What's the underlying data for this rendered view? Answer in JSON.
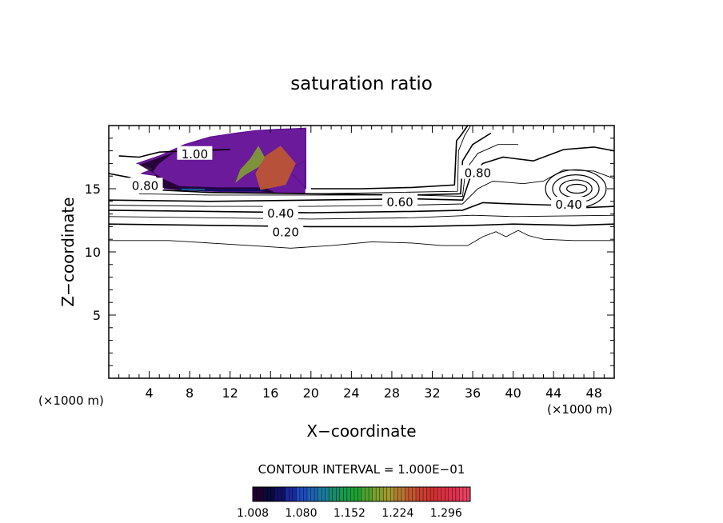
{
  "chart_data": {
    "type": "contour",
    "title": "saturation ratio",
    "xlabel": "X−coordinate",
    "ylabel": "Z−coordinate",
    "x_unit": "(×1000 m)",
    "y_unit": "(×1000 m)",
    "xlim": [
      0,
      50
    ],
    "ylim": [
      0,
      20
    ],
    "x_ticks": [
      4,
      8,
      12,
      16,
      20,
      24,
      28,
      32,
      36,
      40,
      44,
      48
    ],
    "x_tick_labels": [
      "4",
      "8",
      "12",
      "16",
      "20",
      "24",
      "28",
      "32",
      "36",
      "40",
      "44",
      "48"
    ],
    "y_ticks": [
      5,
      10,
      15
    ],
    "y_tick_labels": [
      "5",
      "10",
      "15"
    ],
    "contour_interval_text": "CONTOUR INTERVAL = 1.000E−01",
    "contour_labels": [
      {
        "text": "0.20",
        "x": 17.5,
        "z": 11.6
      },
      {
        "text": "0.40",
        "x": 17.0,
        "z": 13.1
      },
      {
        "text": "0.60",
        "x": 28.8,
        "z": 14.0
      },
      {
        "text": "0.40",
        "x": 45.5,
        "z": 13.8
      },
      {
        "text": "0.80",
        "x": 36.5,
        "z": 16.3
      },
      {
        "text": "0.80",
        "x": 3.6,
        "z": 15.3
      },
      {
        "text": "1.00",
        "x": 8.5,
        "z": 17.8
      }
    ],
    "contours": [
      {
        "level": 0.1,
        "points": [
          [
            0,
            10.9
          ],
          [
            6,
            10.9
          ],
          [
            10,
            10.7
          ],
          [
            14,
            10.5
          ],
          [
            18,
            10.3
          ],
          [
            22,
            10.5
          ],
          [
            26,
            10.8
          ],
          [
            30,
            10.7
          ],
          [
            33,
            10.5
          ],
          [
            35.5,
            10.5
          ],
          [
            37,
            11.2
          ],
          [
            38.3,
            11.6
          ],
          [
            39.3,
            11.2
          ],
          [
            40.5,
            11.7
          ],
          [
            41.5,
            11.3
          ],
          [
            43,
            11.0
          ],
          [
            46,
            10.9
          ],
          [
            50,
            10.9
          ]
        ]
      },
      {
        "level": 0.2,
        "points": [
          [
            0,
            12.2
          ],
          [
            10,
            12.1
          ],
          [
            20,
            12.0
          ],
          [
            30,
            12.0
          ],
          [
            36,
            12.1
          ],
          [
            40,
            12.2
          ],
          [
            46,
            12.1
          ],
          [
            50,
            12.2
          ]
        ]
      },
      {
        "level": 0.3,
        "points": [
          [
            0,
            12.8
          ],
          [
            10,
            12.7
          ],
          [
            20,
            12.6
          ],
          [
            30,
            12.7
          ],
          [
            36,
            12.9
          ],
          [
            40,
            12.8
          ],
          [
            50,
            12.9
          ]
        ]
      },
      {
        "level": 0.4,
        "points": [
          [
            0,
            13.3
          ],
          [
            10,
            13.2
          ],
          [
            20,
            13.1
          ],
          [
            30,
            13.2
          ],
          [
            35,
            13.3
          ],
          [
            37,
            13.9
          ],
          [
            40,
            13.8
          ],
          [
            44,
            13.7
          ],
          [
            47,
            13.5
          ],
          [
            50,
            13.6
          ]
        ]
      },
      {
        "level": 0.5,
        "points": [
          [
            0,
            13.7
          ],
          [
            10,
            13.6
          ],
          [
            20,
            13.6
          ],
          [
            30,
            13.7
          ],
          [
            35,
            13.8
          ],
          [
            36.5,
            15.0
          ],
          [
            38,
            15.6
          ],
          [
            41,
            15.4
          ],
          [
            43,
            15.6
          ],
          [
            45,
            16.5
          ],
          [
            48,
            16.4
          ],
          [
            50,
            15.8
          ]
        ]
      },
      {
        "level": 0.6,
        "points": [
          [
            0,
            14.1
          ],
          [
            10,
            14.0
          ],
          [
            20,
            14.1
          ],
          [
            30,
            14.2
          ],
          [
            35,
            14.1
          ],
          [
            35.8,
            16.0
          ],
          [
            37,
            17.0
          ],
          [
            39,
            17.5
          ],
          [
            42,
            17.2
          ],
          [
            45,
            18.1
          ],
          [
            48,
            18.3
          ],
          [
            50,
            18.0
          ]
        ]
      },
      {
        "level": 0.7,
        "points": [
          [
            3,
            14.6
          ],
          [
            10,
            14.5
          ],
          [
            20,
            14.5
          ],
          [
            30,
            14.5
          ],
          [
            35,
            14.4
          ],
          [
            35.3,
            16.5
          ],
          [
            36.5,
            17.8
          ],
          [
            38.5,
            18.5
          ],
          [
            40.5,
            18.5
          ]
        ]
      },
      {
        "level": 0.8,
        "points": [
          [
            0,
            16.2
          ],
          [
            2,
            15.9
          ],
          [
            3.5,
            15.5
          ],
          [
            5,
            14.9
          ],
          [
            10,
            14.7
          ],
          [
            20,
            14.6
          ],
          [
            30,
            14.5
          ],
          [
            34.8,
            14.6
          ],
          [
            35.0,
            17.2
          ],
          [
            36.0,
            18.5
          ],
          [
            37.8,
            19.4
          ]
        ]
      },
      {
        "level": 0.9,
        "points": [
          [
            20,
            14.6
          ],
          [
            28,
            14.7
          ],
          [
            34.5,
            14.8
          ],
          [
            34.6,
            18.0
          ],
          [
            35.2,
            19.2
          ],
          [
            35.8,
            20
          ]
        ]
      },
      {
        "level": 1.0,
        "points": [
          [
            1,
            17.6
          ],
          [
            3,
            17.5
          ],
          [
            5,
            17.9
          ],
          [
            8,
            18.0
          ],
          [
            12,
            18.1
          ]
        ]
      },
      {
        "level": 1.0,
        "points": [
          [
            20,
            15.0
          ],
          [
            25,
            15.0
          ],
          [
            30,
            15.1
          ],
          [
            34.2,
            15.3
          ],
          [
            34.4,
            18.8
          ],
          [
            34.9,
            19.3
          ],
          [
            35.5,
            20
          ]
        ]
      }
    ],
    "closed_contours": [
      {
        "level": 0.5,
        "cx": 46.2,
        "cz": 15.0,
        "rx": 3.0,
        "rz": 1.5
      },
      {
        "level": 0.6,
        "cx": 46.2,
        "cz": 15.0,
        "rx": 2.3,
        "rz": 1.1
      },
      {
        "level": 0.7,
        "cx": 46.2,
        "cz": 15.0,
        "rx": 1.6,
        "rz": 0.7
      },
      {
        "level": 0.8,
        "cx": 46.3,
        "cz": 15.0,
        "rx": 1.0,
        "rz": 0.35
      }
    ],
    "filled_region": {
      "min_level": 1.0,
      "outline": [
        [
          2.8,
          17.0
        ],
        [
          5.0,
          17.6
        ],
        [
          7.5,
          18.5
        ],
        [
          10.0,
          19.1
        ],
        [
          12.5,
          19.4
        ],
        [
          14.5,
          19.6
        ],
        [
          16.5,
          19.7
        ],
        [
          19.5,
          19.8
        ],
        [
          19.5,
          15.0
        ],
        [
          18.5,
          15.9
        ],
        [
          17.5,
          16.5
        ],
        [
          18.5,
          16.8
        ],
        [
          19.4,
          17.2
        ],
        [
          19.4,
          14.6
        ],
        [
          16.0,
          14.7
        ],
        [
          10.0,
          14.8
        ],
        [
          5.5,
          15.0
        ],
        [
          5.0,
          16.0
        ],
        [
          3.2,
          16.2
        ],
        [
          4.5,
          16.6
        ]
      ],
      "bands": [
        {
          "value": 1.02,
          "outline": [
            [
              3.0,
              16.9
            ],
            [
              4.8,
              17.4
            ],
            [
              6.5,
              17.9
            ],
            [
              7.5,
              18.4
            ],
            [
              6.0,
              17.6
            ],
            [
              5.0,
              17.0
            ],
            [
              4.4,
              16.4
            ],
            [
              5.2,
              15.1
            ],
            [
              7.0,
              14.85
            ],
            [
              11.0,
              14.8
            ],
            [
              15.0,
              14.8
            ],
            [
              16.5,
              14.65
            ],
            [
              15.5,
              15.1
            ],
            [
              11.0,
              15.1
            ],
            [
              7.0,
              15.2
            ],
            [
              5.6,
              15.7
            ]
          ]
        },
        {
          "value": 1.05,
          "outline": [
            [
              7.0,
              14.85
            ],
            [
              11.0,
              14.8
            ],
            [
              15.5,
              14.8
            ],
            [
              15.5,
              15.0
            ],
            [
              11.0,
              15.0
            ],
            [
              7.0,
              15.05
            ]
          ]
        },
        {
          "value": 1.12,
          "outline": [
            [
              7.2,
              14.9
            ],
            [
              9.5,
              14.88
            ],
            [
              9.5,
              14.98
            ],
            [
              7.2,
              15.0
            ]
          ]
        },
        {
          "value": 1.2,
          "outline": [
            [
              12.5,
              15.45
            ],
            [
              13.5,
              16.1
            ],
            [
              14.8,
              16.7
            ],
            [
              15.5,
              17.4
            ],
            [
              14.8,
              18.4
            ],
            [
              14.0,
              17.4
            ],
            [
              13.0,
              16.5
            ]
          ]
        },
        {
          "value": 1.24,
          "outline": [
            [
              15.0,
              14.9
            ],
            [
              17.5,
              15.3
            ],
            [
              18.5,
              17.0
            ],
            [
              17.0,
              18.4
            ],
            [
              15.5,
              17.6
            ],
            [
              14.5,
              16.2
            ]
          ]
        }
      ]
    },
    "colorbar": {
      "min": 1.008,
      "max": 1.332,
      "tick_values": [
        1.008,
        1.08,
        1.152,
        1.224,
        1.296
      ],
      "tick_labels": [
        "1.008",
        "1.080",
        "1.152",
        "1.224",
        "1.296"
      ],
      "colors": [
        "#200030",
        "#0a0a3a",
        "#101066",
        "#1a2a9a",
        "#1e4ac0",
        "#2060b0",
        "#1a7a9a",
        "#1a8a6a",
        "#1a9a4a",
        "#20a030",
        "#50a030",
        "#80a030",
        "#a09830",
        "#b07830",
        "#c05830",
        "#c84030",
        "#d03030",
        "#d83040",
        "#e03050",
        "#e84060"
      ]
    }
  }
}
